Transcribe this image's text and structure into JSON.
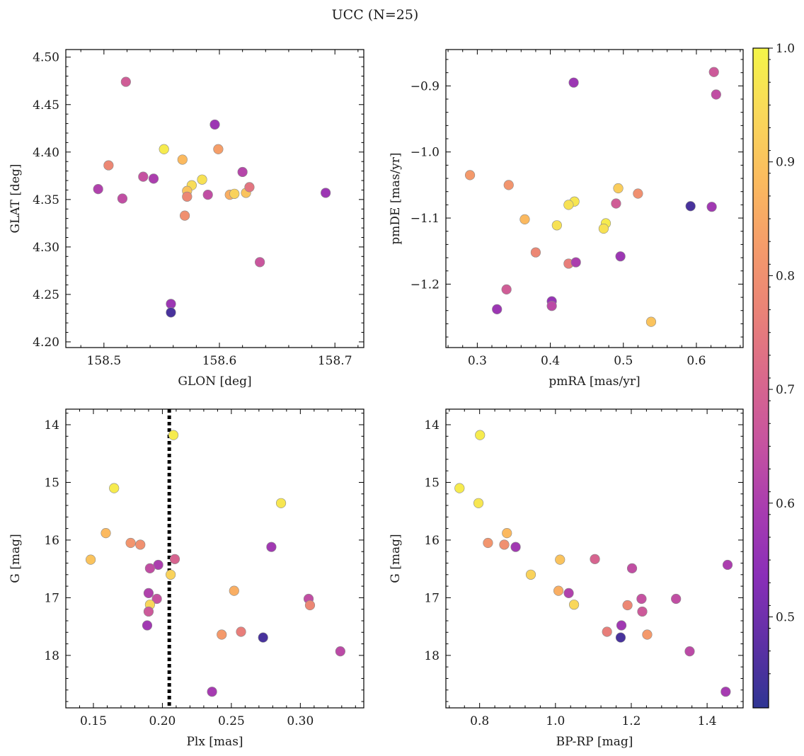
{
  "figure": {
    "title": "UCC (N=25)"
  },
  "colorbar": {
    "range": [
      0.42,
      1.0
    ],
    "ticks": [
      0.5,
      0.6,
      0.7,
      0.8,
      0.9,
      1.0
    ],
    "tick_labels": [
      "0.5",
      "0.6",
      "0.7",
      "0.8",
      "0.9",
      "1.0"
    ],
    "colormap": "plasma",
    "stops": [
      "#2f3593",
      "#5f30a5",
      "#8a2fb8",
      "#a83cb0",
      "#c653a0",
      "#d9688c",
      "#ea8277",
      "#f59c6a",
      "#fbbb5e",
      "#f9d85a",
      "#f4f548"
    ]
  },
  "chart_data": [
    {
      "id": "pos",
      "type": "scatter",
      "xlabel": "GLON [deg]",
      "ylabel": "GLAT [deg]",
      "xlim": [
        158.467,
        158.725
      ],
      "ylim": [
        4.194,
        4.508
      ],
      "invert_y": false,
      "xticks": [
        158.5,
        158.6,
        158.7
      ],
      "xtick_labels": [
        "158.5",
        "158.6",
        "158.7"
      ],
      "yticks": [
        4.2,
        4.25,
        4.3,
        4.35,
        4.4,
        4.45,
        4.5
      ],
      "ytick_labels": [
        "4.20",
        "4.25",
        "4.30",
        "4.35",
        "4.40",
        "4.45",
        "4.50"
      ],
      "vline": null,
      "points": [
        {
          "x": 158.519,
          "y": 4.474,
          "c": 0.68
        },
        {
          "x": 158.596,
          "y": 4.429,
          "c": 0.57
        },
        {
          "x": 158.504,
          "y": 4.386,
          "c": 0.78
        },
        {
          "x": 158.552,
          "y": 4.403,
          "c": 0.98
        },
        {
          "x": 158.568,
          "y": 4.392,
          "c": 0.88
        },
        {
          "x": 158.599,
          "y": 4.403,
          "c": 0.83
        },
        {
          "x": 158.495,
          "y": 4.361,
          "c": 0.61
        },
        {
          "x": 158.516,
          "y": 4.351,
          "c": 0.64
        },
        {
          "x": 158.534,
          "y": 4.374,
          "c": 0.65
        },
        {
          "x": 158.543,
          "y": 4.372,
          "c": 0.6
        },
        {
          "x": 158.576,
          "y": 4.365,
          "c": 0.95
        },
        {
          "x": 158.585,
          "y": 4.371,
          "c": 0.96
        },
        {
          "x": 158.572,
          "y": 4.359,
          "c": 0.9
        },
        {
          "x": 158.572,
          "y": 4.353,
          "c": 0.78
        },
        {
          "x": 158.59,
          "y": 4.355,
          "c": 0.64
        },
        {
          "x": 158.609,
          "y": 4.355,
          "c": 0.86
        },
        {
          "x": 158.613,
          "y": 4.356,
          "c": 0.93
        },
        {
          "x": 158.62,
          "y": 4.379,
          "c": 0.62
        },
        {
          "x": 158.623,
          "y": 4.357,
          "c": 0.9
        },
        {
          "x": 158.626,
          "y": 4.363,
          "c": 0.74
        },
        {
          "x": 158.57,
          "y": 4.333,
          "c": 0.8
        },
        {
          "x": 158.635,
          "y": 4.284,
          "c": 0.66
        },
        {
          "x": 158.558,
          "y": 4.24,
          "c": 0.57
        },
        {
          "x": 158.558,
          "y": 4.231,
          "c": 0.45
        },
        {
          "x": 158.692,
          "y": 4.357,
          "c": 0.57
        }
      ]
    },
    {
      "id": "pm",
      "type": "scatter",
      "xlabel": "pmRA [mas/yr]",
      "ylabel": "pmDE [mas/yr]",
      "xlim": [
        0.257,
        0.664
      ],
      "ylim": [
        -1.296,
        -0.845
      ],
      "invert_y": false,
      "xticks": [
        0.3,
        0.4,
        0.5,
        0.6
      ],
      "xtick_labels": [
        "0.3",
        "0.4",
        "0.5",
        "0.6"
      ],
      "yticks": [
        -1.2,
        -1.1,
        -1.0,
        -0.9
      ],
      "ytick_labels": [
        "−1.2",
        "−1.1",
        "−1.0",
        "−0.9"
      ],
      "vline": null,
      "points": [
        {
          "x": 0.624,
          "y": -0.879,
          "c": 0.67
        },
        {
          "x": 0.627,
          "y": -0.913,
          "c": 0.64
        },
        {
          "x": 0.432,
          "y": -0.895,
          "c": 0.57
        },
        {
          "x": 0.29,
          "y": -1.035,
          "c": 0.82
        },
        {
          "x": 0.343,
          "y": -1.05,
          "c": 0.81
        },
        {
          "x": 0.493,
          "y": -1.055,
          "c": 0.92
        },
        {
          "x": 0.52,
          "y": -1.063,
          "c": 0.8
        },
        {
          "x": 0.433,
          "y": -1.075,
          "c": 0.97
        },
        {
          "x": 0.425,
          "y": -1.08,
          "c": 0.96
        },
        {
          "x": 0.49,
          "y": -1.078,
          "c": 0.68
        },
        {
          "x": 0.592,
          "y": -1.082,
          "c": 0.45
        },
        {
          "x": 0.621,
          "y": -1.083,
          "c": 0.58
        },
        {
          "x": 0.365,
          "y": -1.102,
          "c": 0.88
        },
        {
          "x": 0.409,
          "y": -1.111,
          "c": 0.96
        },
        {
          "x": 0.476,
          "y": -1.108,
          "c": 0.98
        },
        {
          "x": 0.473,
          "y": -1.116,
          "c": 0.96
        },
        {
          "x": 0.38,
          "y": -1.152,
          "c": 0.78
        },
        {
          "x": 0.425,
          "y": -1.169,
          "c": 0.76
        },
        {
          "x": 0.435,
          "y": -1.167,
          "c": 0.6
        },
        {
          "x": 0.496,
          "y": -1.158,
          "c": 0.57
        },
        {
          "x": 0.34,
          "y": -1.208,
          "c": 0.68
        },
        {
          "x": 0.327,
          "y": -1.238,
          "c": 0.57
        },
        {
          "x": 0.402,
          "y": -1.226,
          "c": 0.56
        },
        {
          "x": 0.402,
          "y": -1.233,
          "c": 0.63
        },
        {
          "x": 0.538,
          "y": -1.257,
          "c": 0.9
        }
      ]
    },
    {
      "id": "plx",
      "type": "scatter",
      "xlabel": "Plx [mas]",
      "ylabel": "G [mag]",
      "xlim": [
        0.13,
        0.346
      ],
      "ylim": [
        18.91,
        13.73
      ],
      "invert_y": true,
      "xticks": [
        0.15,
        0.2,
        0.25,
        0.3
      ],
      "xtick_labels": [
        "0.15",
        "0.20",
        "0.25",
        "0.30"
      ],
      "yticks": [
        14,
        15,
        16,
        17,
        18
      ],
      "ytick_labels": [
        "14",
        "15",
        "16",
        "17",
        "18"
      ],
      "vline": 0.205,
      "points": [
        {
          "x": 0.208,
          "y": 14.18,
          "c": 0.98
        },
        {
          "x": 0.165,
          "y": 15.1,
          "c": 0.98
        },
        {
          "x": 0.286,
          "y": 15.36,
          "c": 0.97
        },
        {
          "x": 0.159,
          "y": 15.88,
          "c": 0.88
        },
        {
          "x": 0.177,
          "y": 16.05,
          "c": 0.81
        },
        {
          "x": 0.184,
          "y": 16.08,
          "c": 0.8
        },
        {
          "x": 0.279,
          "y": 16.12,
          "c": 0.58
        },
        {
          "x": 0.148,
          "y": 16.34,
          "c": 0.9
        },
        {
          "x": 0.209,
          "y": 16.33,
          "c": 0.7
        },
        {
          "x": 0.197,
          "y": 16.43,
          "c": 0.6
        },
        {
          "x": 0.191,
          "y": 16.49,
          "c": 0.64
        },
        {
          "x": 0.206,
          "y": 16.6,
          "c": 0.93
        },
        {
          "x": 0.19,
          "y": 16.92,
          "c": 0.61
        },
        {
          "x": 0.252,
          "y": 16.88,
          "c": 0.86
        },
        {
          "x": 0.196,
          "y": 17.02,
          "c": 0.65
        },
        {
          "x": 0.306,
          "y": 17.02,
          "c": 0.64
        },
        {
          "x": 0.307,
          "y": 17.13,
          "c": 0.78
        },
        {
          "x": 0.191,
          "y": 17.12,
          "c": 0.94
        },
        {
          "x": 0.19,
          "y": 17.24,
          "c": 0.67
        },
        {
          "x": 0.189,
          "y": 17.48,
          "c": 0.58
        },
        {
          "x": 0.257,
          "y": 17.59,
          "c": 0.76
        },
        {
          "x": 0.243,
          "y": 17.64,
          "c": 0.82
        },
        {
          "x": 0.273,
          "y": 17.69,
          "c": 0.45
        },
        {
          "x": 0.329,
          "y": 17.93,
          "c": 0.63
        },
        {
          "x": 0.236,
          "y": 18.63,
          "c": 0.59
        }
      ]
    },
    {
      "id": "cmd",
      "type": "scatter",
      "xlabel": "BP-RP [mag]",
      "ylabel": "G [mag]",
      "xlim": [
        0.711,
        1.495
      ],
      "ylim": [
        18.91,
        13.73
      ],
      "invert_y": true,
      "xticks": [
        0.8,
        1.0,
        1.2,
        1.4
      ],
      "xtick_labels": [
        "0.8",
        "1.0",
        "1.2",
        "1.4"
      ],
      "yticks": [
        14,
        15,
        16,
        17,
        18
      ],
      "ytick_labels": [
        "14",
        "15",
        "16",
        "17",
        "18"
      ],
      "vline": null,
      "points": [
        {
          "x": 0.801,
          "y": 14.18,
          "c": 0.98
        },
        {
          "x": 0.747,
          "y": 15.1,
          "c": 0.98
        },
        {
          "x": 0.797,
          "y": 15.36,
          "c": 0.97
        },
        {
          "x": 0.872,
          "y": 15.88,
          "c": 0.88
        },
        {
          "x": 0.822,
          "y": 16.05,
          "c": 0.81
        },
        {
          "x": 0.865,
          "y": 16.08,
          "c": 0.8
        },
        {
          "x": 0.895,
          "y": 16.12,
          "c": 0.58
        },
        {
          "x": 1.012,
          "y": 16.34,
          "c": 0.9
        },
        {
          "x": 1.104,
          "y": 16.33,
          "c": 0.7
        },
        {
          "x": 1.454,
          "y": 16.43,
          "c": 0.6
        },
        {
          "x": 1.202,
          "y": 16.49,
          "c": 0.64
        },
        {
          "x": 0.935,
          "y": 16.6,
          "c": 0.93
        },
        {
          "x": 1.035,
          "y": 16.92,
          "c": 0.61
        },
        {
          "x": 1.008,
          "y": 16.88,
          "c": 0.86
        },
        {
          "x": 1.227,
          "y": 17.02,
          "c": 0.65
        },
        {
          "x": 1.318,
          "y": 17.02,
          "c": 0.64
        },
        {
          "x": 1.19,
          "y": 17.13,
          "c": 0.78
        },
        {
          "x": 1.049,
          "y": 17.12,
          "c": 0.94
        },
        {
          "x": 1.229,
          "y": 17.24,
          "c": 0.67
        },
        {
          "x": 1.174,
          "y": 17.48,
          "c": 0.58
        },
        {
          "x": 1.136,
          "y": 17.59,
          "c": 0.76
        },
        {
          "x": 1.242,
          "y": 17.64,
          "c": 0.82
        },
        {
          "x": 1.172,
          "y": 17.69,
          "c": 0.45
        },
        {
          "x": 1.354,
          "y": 17.93,
          "c": 0.63
        },
        {
          "x": 1.449,
          "y": 18.63,
          "c": 0.59
        }
      ]
    }
  ]
}
